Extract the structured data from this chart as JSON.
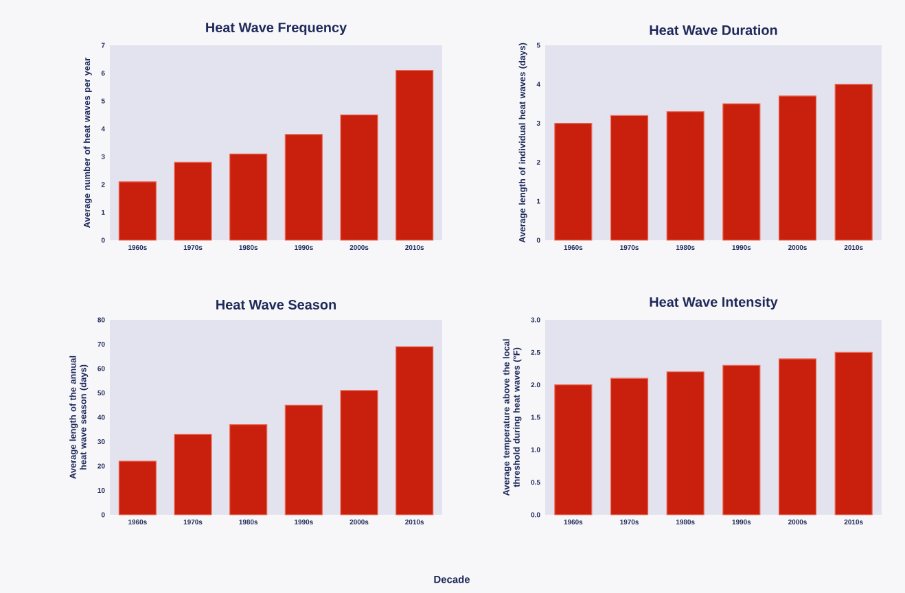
{
  "chart_data": [
    {
      "type": "bar",
      "title": "Heat Wave Frequency",
      "ylabel": "Average number of heat waves per year",
      "categories": [
        "1960s",
        "1970s",
        "1980s",
        "1990s",
        "2000s",
        "2010s"
      ],
      "values": [
        2.1,
        2.8,
        3.1,
        3.8,
        4.5,
        6.1
      ],
      "color": "#c8200c",
      "ylim": [
        0,
        7
      ],
      "yticks": [
        0,
        1,
        2,
        3,
        4,
        5,
        6,
        7
      ]
    },
    {
      "type": "bar",
      "title": "Heat Wave Duration",
      "ylabel": "Average length of individual heat waves (days)",
      "categories": [
        "1960s",
        "1970s",
        "1980s",
        "1990s",
        "2000s",
        "2010s"
      ],
      "values": [
        3.0,
        3.2,
        3.3,
        3.5,
        3.7,
        4.0
      ],
      "color": "#c8200c",
      "ylim": [
        0,
        5
      ],
      "yticks": [
        0,
        1,
        2,
        3,
        4,
        5
      ]
    },
    {
      "type": "bar",
      "title": "Heat Wave Season",
      "ylabel": "Average length of the annual heat wave season (days)",
      "xlabel": "Decade",
      "categories": [
        "1960s",
        "1970s",
        "1980s",
        "1990s",
        "2000s",
        "2010s"
      ],
      "values": [
        22,
        33,
        37,
        45,
        51,
        69
      ],
      "color": "#c8200c",
      "ylim": [
        0,
        80
      ],
      "yticks": [
        0,
        10,
        20,
        30,
        40,
        50,
        60,
        70,
        80
      ]
    },
    {
      "type": "bar",
      "title": "Heat Wave Intensity",
      "ylabel": "Average temperature above the local threshold during heat waves (°F)",
      "categories": [
        "1960s",
        "1970s",
        "1980s",
        "1990s",
        "2000s",
        "2010s"
      ],
      "values": [
        2.0,
        2.1,
        2.2,
        2.3,
        2.4,
        2.5
      ],
      "color": "#c8200c",
      "ylim": [
        0,
        3
      ],
      "yticks": [
        {
          "value": 0,
          "label": "0.0"
        },
        {
          "value": 0.5,
          "label": "0.5"
        },
        {
          "value": 1,
          "label": "1.0"
        },
        {
          "value": 1.5,
          "label": "1.5"
        },
        {
          "value": 2,
          "label": "2.0"
        },
        {
          "value": 2.5,
          "label": "2.5"
        },
        {
          "value": 3,
          "label": "3.0"
        }
      ]
    }
  ]
}
